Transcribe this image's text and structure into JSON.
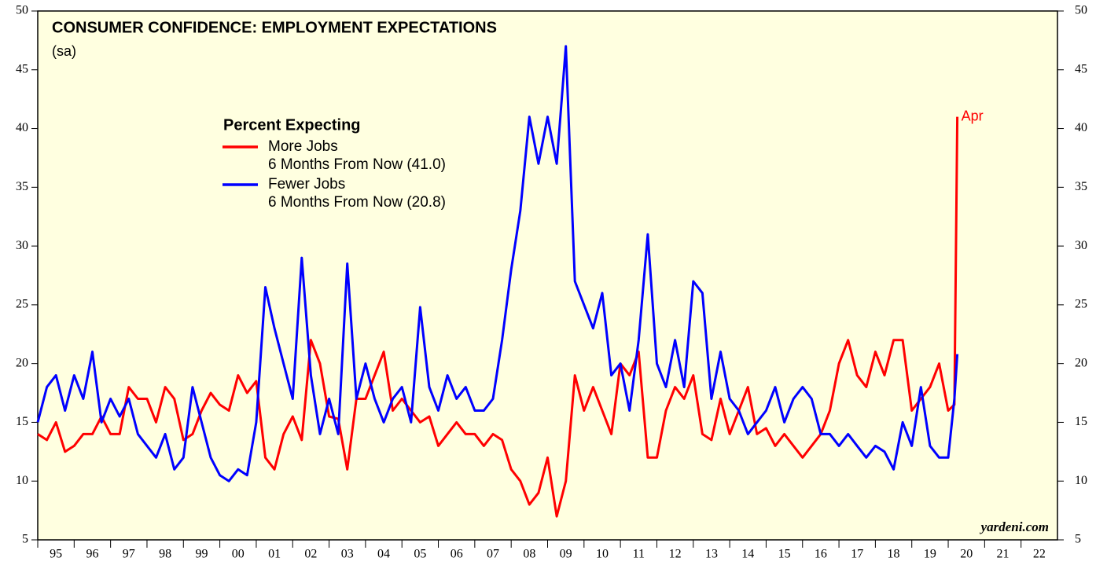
{
  "chart_data": {
    "type": "line",
    "title": "CONSUMER CONFIDENCE: EMPLOYMENT EXPECTATIONS",
    "subtitle": "(sa)",
    "legend_title": "Percent Expecting",
    "annotation": "Apr",
    "source": "yardeni.com",
    "x": [
      1995,
      1995.25,
      1995.5,
      1995.75,
      1996,
      1996.25,
      1996.5,
      1996.75,
      1997,
      1997.25,
      1997.5,
      1997.75,
      1998,
      1998.25,
      1998.5,
      1998.75,
      1999,
      1999.25,
      1999.5,
      1999.75,
      2000,
      2000.25,
      2000.5,
      2000.75,
      2001,
      2001.25,
      2001.5,
      2001.75,
      2002,
      2002.25,
      2002.5,
      2002.75,
      2003,
      2003.25,
      2003.5,
      2003.75,
      2004,
      2004.25,
      2004.5,
      2004.75,
      2005,
      2005.25,
      2005.5,
      2005.75,
      2006,
      2006.25,
      2006.5,
      2006.75,
      2007,
      2007.25,
      2007.5,
      2007.75,
      2008,
      2008.25,
      2008.5,
      2008.75,
      2009,
      2009.25,
      2009.5,
      2009.75,
      2010,
      2010.25,
      2010.5,
      2010.75,
      2011,
      2011.25,
      2011.5,
      2011.75,
      2012,
      2012.25,
      2012.5,
      2012.75,
      2013,
      2013.25,
      2013.5,
      2013.75,
      2014,
      2014.25,
      2014.5,
      2014.75,
      2015,
      2015.25,
      2015.5,
      2015.75,
      2016,
      2016.25,
      2016.5,
      2016.75,
      2017,
      2017.25,
      2017.5,
      2017.75,
      2018,
      2018.25,
      2018.5,
      2018.75,
      2019,
      2019.25,
      2019.5,
      2019.75,
      2020,
      2020.17,
      2020.25
    ],
    "series": [
      {
        "name": "More Jobs",
        "name_line2": "6 Months From Now (41.0)",
        "color": "#ff0000",
        "values": [
          14,
          13.5,
          15,
          12.5,
          13,
          14,
          14,
          15.5,
          14,
          14,
          18,
          17,
          17,
          15,
          18,
          17,
          13.5,
          14,
          16,
          17.5,
          16.5,
          16,
          19,
          17.5,
          18.5,
          12,
          11,
          14,
          15.5,
          13.5,
          22,
          20,
          15.5,
          15.3,
          11,
          17,
          17,
          19,
          21,
          16,
          17,
          16,
          15,
          15.5,
          13,
          14,
          15,
          14,
          14,
          13,
          14,
          13.5,
          11,
          10,
          8,
          9,
          12,
          7,
          10,
          19,
          16,
          18,
          16,
          14,
          20,
          19,
          21,
          12,
          12,
          16,
          18,
          17,
          19,
          14,
          13.5,
          17,
          14,
          16,
          18,
          14,
          14.5,
          13,
          14,
          13,
          12,
          13,
          14,
          16,
          20,
          22,
          19,
          18,
          21,
          19,
          22,
          22,
          16,
          17,
          18,
          20,
          16,
          16.5,
          41
        ]
      },
      {
        "name": "Fewer Jobs",
        "name_line2": "6 Months From Now (20.8)",
        "color": "#0000ff",
        "values": [
          15,
          18,
          19,
          16,
          19,
          17,
          21,
          15,
          17,
          15.5,
          17,
          14,
          13,
          12,
          14,
          11,
          12,
          18,
          15,
          12,
          10.5,
          10,
          11,
          10.5,
          15,
          26.5,
          23,
          20,
          17,
          29,
          19,
          14,
          17,
          14,
          28.5,
          17,
          20,
          17,
          15,
          17,
          18,
          15,
          24.8,
          18,
          16,
          19,
          17,
          18,
          16,
          16,
          17,
          22,
          28,
          33,
          41,
          37,
          41,
          37,
          47,
          27,
          25,
          23,
          26,
          19,
          20,
          16,
          22,
          31,
          20,
          18,
          22,
          18,
          27,
          26,
          17,
          21,
          17,
          16,
          14,
          15,
          16,
          18,
          15,
          17,
          18,
          17,
          14,
          14,
          13,
          14,
          13,
          12,
          13,
          12.5,
          11,
          15,
          13,
          18,
          13,
          12,
          12,
          17,
          20.8
        ]
      }
    ],
    "xlim": [
      1995,
      2023
    ],
    "xticks": [
      {
        "value": 1995,
        "label": "95"
      },
      {
        "value": 1996,
        "label": "96"
      },
      {
        "value": 1997,
        "label": "97"
      },
      {
        "value": 1998,
        "label": "98"
      },
      {
        "value": 1999,
        "label": "99"
      },
      {
        "value": 2000,
        "label": "00"
      },
      {
        "value": 2001,
        "label": "01"
      },
      {
        "value": 2002,
        "label": "02"
      },
      {
        "value": 2003,
        "label": "03"
      },
      {
        "value": 2004,
        "label": "04"
      },
      {
        "value": 2005,
        "label": "05"
      },
      {
        "value": 2006,
        "label": "06"
      },
      {
        "value": 2007,
        "label": "07"
      },
      {
        "value": 2008,
        "label": "08"
      },
      {
        "value": 2009,
        "label": "09"
      },
      {
        "value": 2010,
        "label": "10"
      },
      {
        "value": 2011,
        "label": "11"
      },
      {
        "value": 2012,
        "label": "12"
      },
      {
        "value": 2013,
        "label": "13"
      },
      {
        "value": 2014,
        "label": "14"
      },
      {
        "value": 2015,
        "label": "15"
      },
      {
        "value": 2016,
        "label": "16"
      },
      {
        "value": 2017,
        "label": "17"
      },
      {
        "value": 2018,
        "label": "18"
      },
      {
        "value": 2019,
        "label": "19"
      },
      {
        "value": 2020,
        "label": "20"
      },
      {
        "value": 2021,
        "label": "21"
      },
      {
        "value": 2022,
        "label": "22"
      }
    ],
    "ylim": [
      5,
      50
    ],
    "yticks": [
      5,
      10,
      15,
      20,
      25,
      30,
      35,
      40,
      45,
      50
    ],
    "background": "#ffffe0"
  }
}
